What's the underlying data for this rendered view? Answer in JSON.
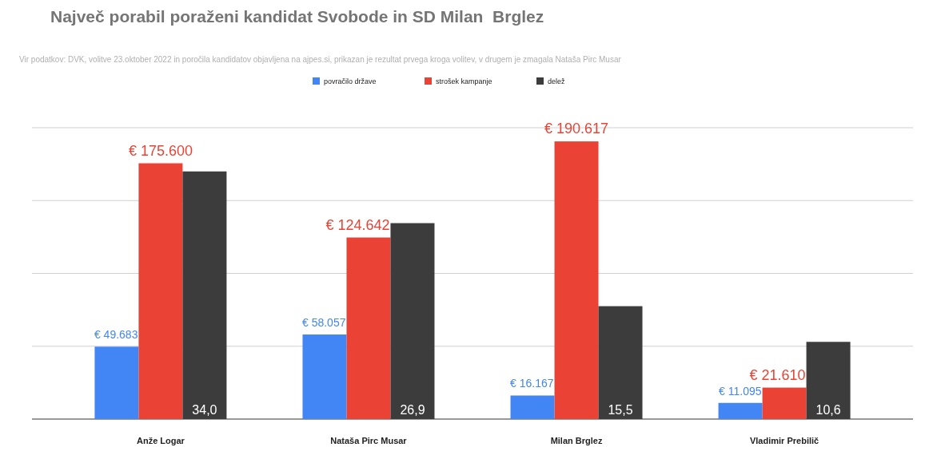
{
  "chart_data": {
    "type": "bar",
    "title": "Največ porabil poraženi kandidat Svobode in SD Milan  Brglez",
    "subtitle": "Vir podatkov: DVK, volitve 23.oktober 2022 in poročila kandidatov objavljena na ajpes.si, prikazan je rezultat prvega kroga volitev, v drugem je zmagala Nataša Pirc Musar",
    "categories": [
      "Anže Logar",
      "Nataša Pirc Musar",
      "Milan Brglez",
      "Vladimir Prebilič"
    ],
    "series": [
      {
        "name": "povračilo države",
        "color": "#4285f4",
        "values": [
          49683,
          58057,
          16167,
          11095
        ],
        "value_labels": [
          "€ 49.683",
          "€ 58.057",
          "€ 16.167",
          "€ 11.095"
        ]
      },
      {
        "name": "strošek kampanje",
        "color": "#ea4335",
        "values": [
          175600,
          124642,
          190617,
          21610
        ],
        "value_labels": [
          "€ 175.600",
          "€ 124.642",
          "€ 190.617",
          "€ 21.610"
        ]
      },
      {
        "name": "delež",
        "color": "#3c3c3c",
        "axis": "y2",
        "values": [
          34.0,
          26.9,
          15.5,
          10.6
        ],
        "value_labels": [
          "34,0",
          "26,9",
          "15,5",
          "10,6"
        ]
      }
    ],
    "ylim": [
      0,
      200000
    ],
    "yticks": [
      {
        "value": 0,
        "label": null
      },
      {
        "value": 50000,
        "label": null
      },
      {
        "value": 100000,
        "label": null
      },
      {
        "value": 150000,
        "label": null
      },
      {
        "value": 200000,
        "label": null
      }
    ],
    "y2lim": [
      0,
      40
    ],
    "grid": "y",
    "tick_labels": "x",
    "legend": "top"
  }
}
